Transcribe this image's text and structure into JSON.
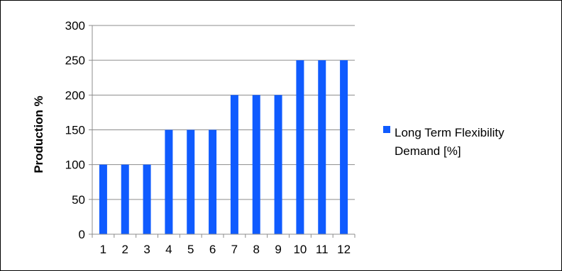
{
  "chart_data": {
    "type": "bar",
    "title": "",
    "xlabel": "",
    "ylabel": "Production %",
    "categories": [
      "1",
      "2",
      "3",
      "4",
      "5",
      "6",
      "7",
      "8",
      "9",
      "10",
      "11",
      "12"
    ],
    "series": [
      {
        "name": "Long Term Flexibility Demand [%]",
        "values": [
          100,
          100,
          100,
          150,
          150,
          150,
          200,
          200,
          200,
          250,
          250,
          250
        ],
        "color": "#0f5bff"
      }
    ],
    "ylim": [
      0,
      300
    ],
    "yticks": [
      0,
      50,
      100,
      150,
      200,
      250,
      300
    ],
    "grid": true,
    "legend_position": "right"
  },
  "legend": {
    "line1": "Long Term Flexibility",
    "line2": "Demand [%]"
  }
}
